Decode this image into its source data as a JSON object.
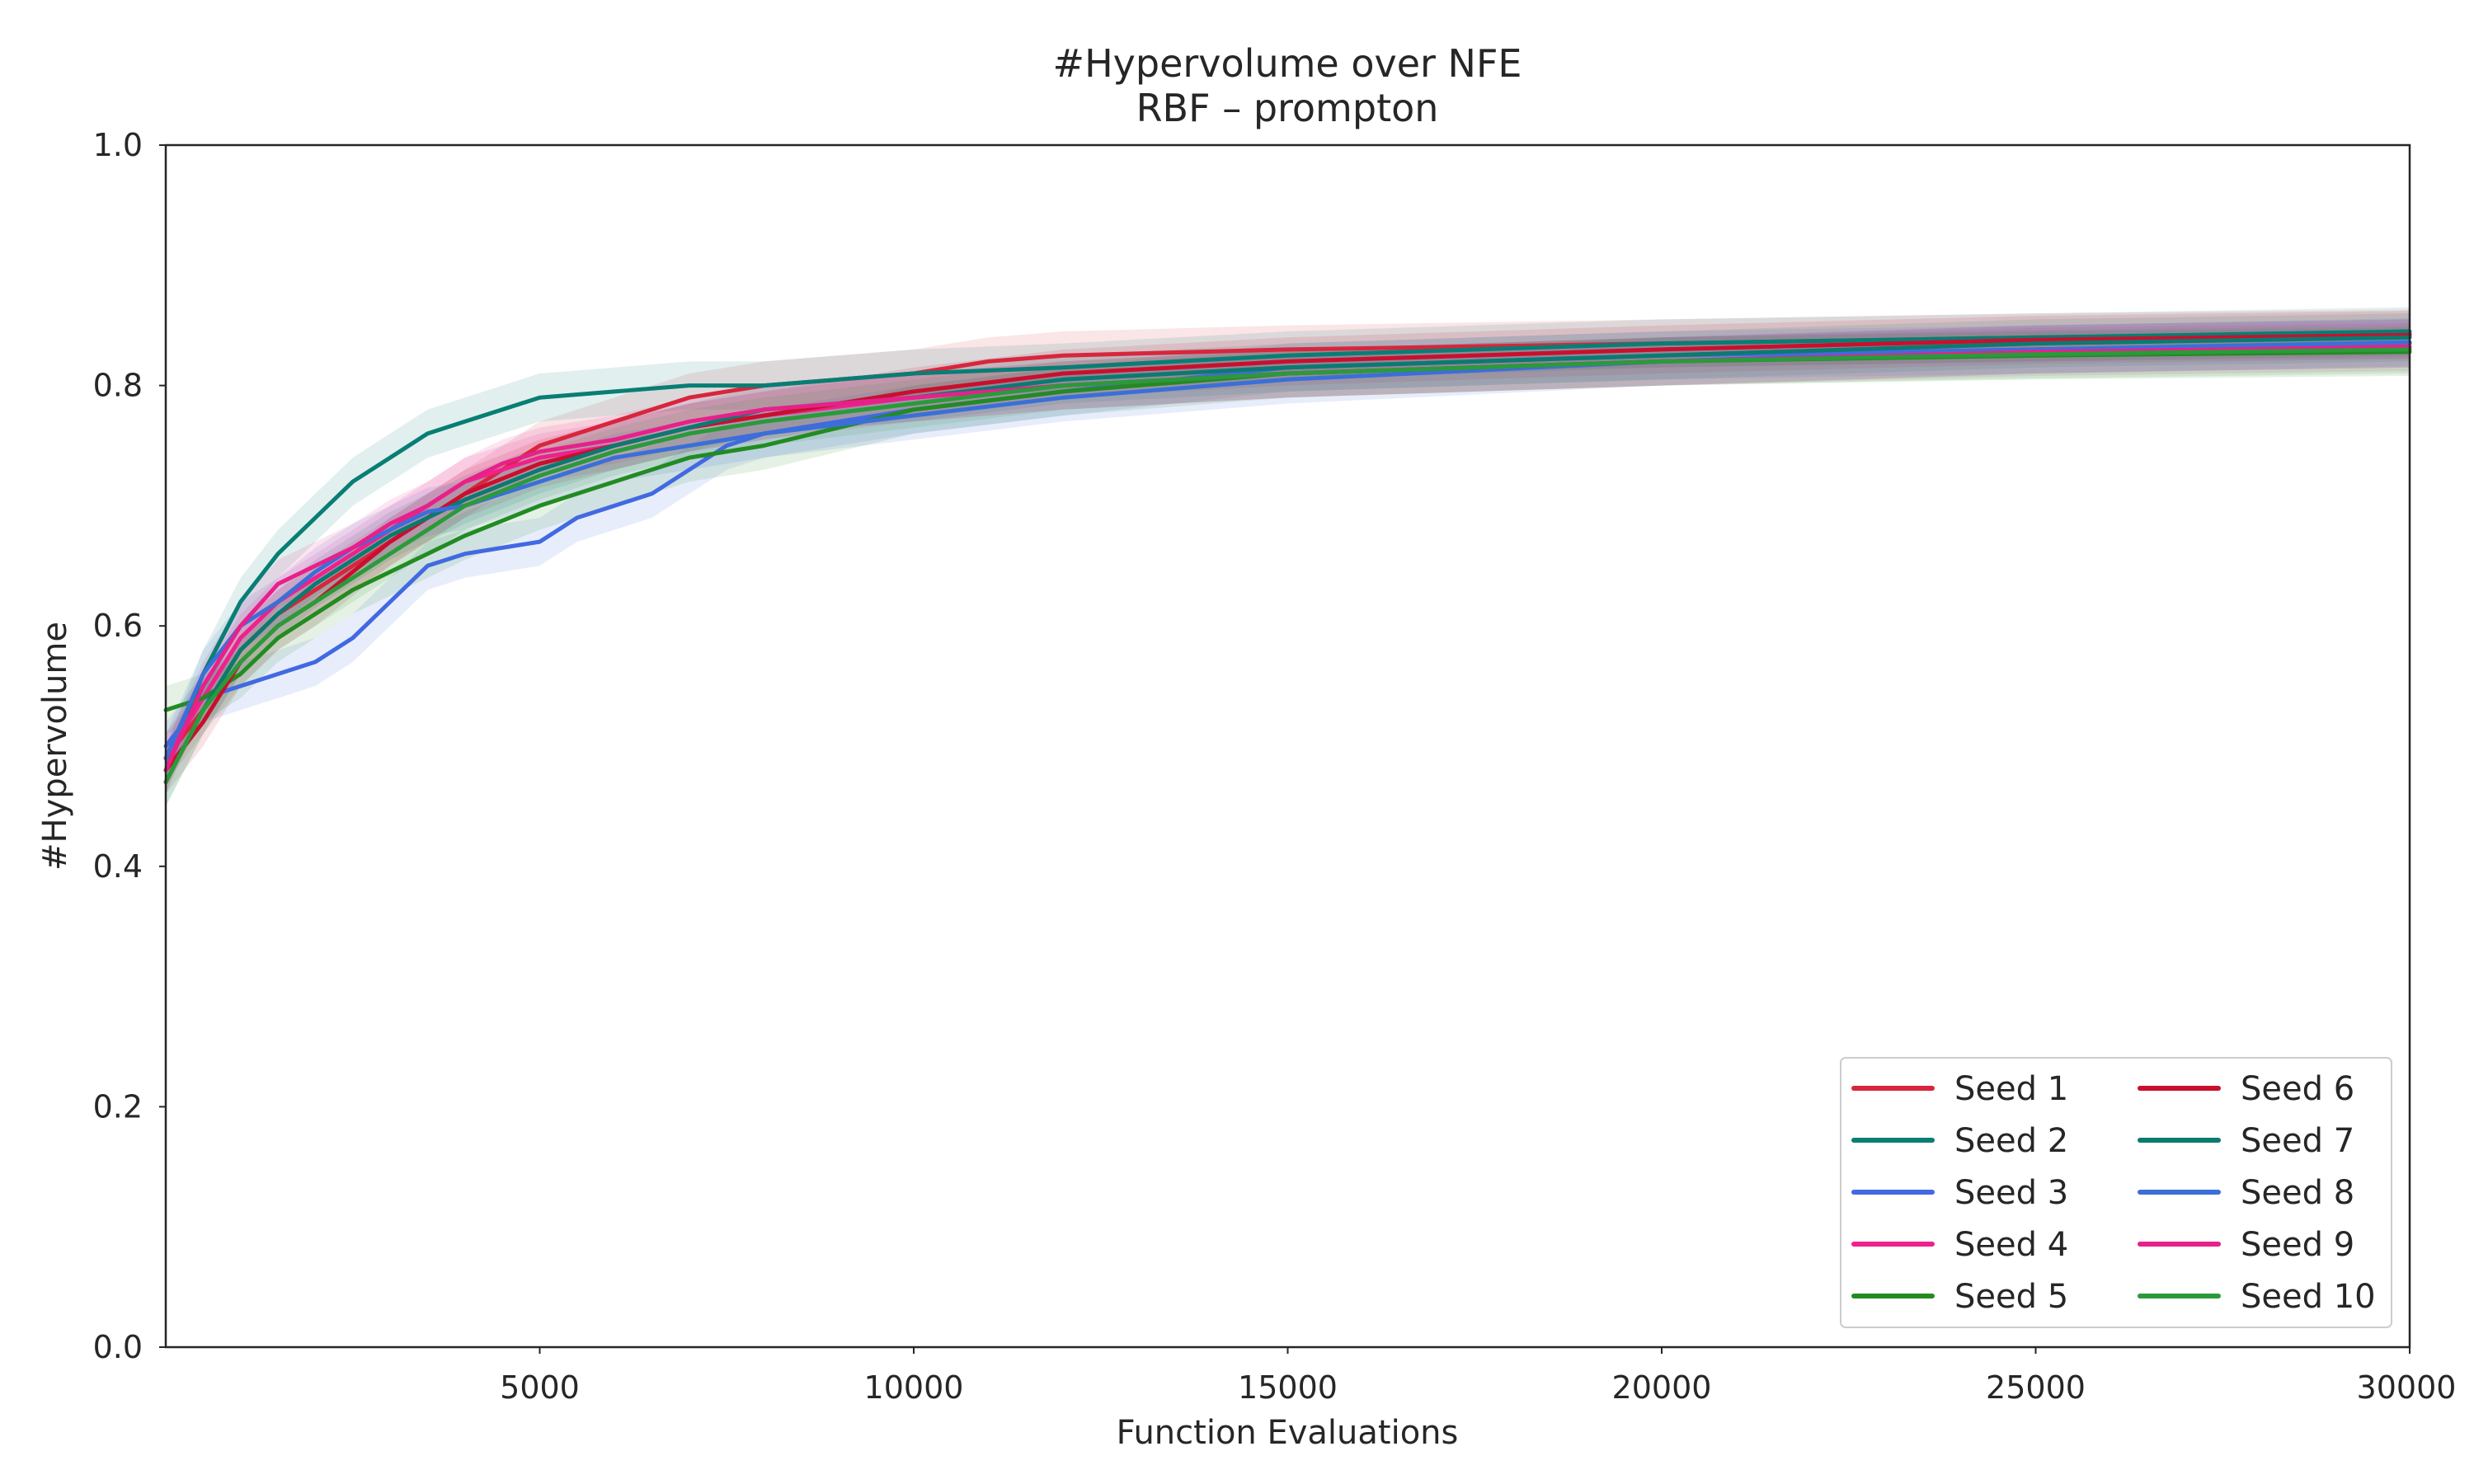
{
  "chart_data": {
    "type": "line",
    "title": "#Hypervolume over NFE",
    "subtitle": "RBF – prompton",
    "xlabel": "Function Evaluations",
    "ylabel": "#Hypervolume",
    "xlim": [
      0,
      30000
    ],
    "ylim": [
      0.0,
      1.0
    ],
    "xticks": [
      5000,
      10000,
      15000,
      20000,
      25000,
      30000
    ],
    "yticks": [
      0.0,
      0.2,
      0.4,
      0.6,
      0.8,
      1.0
    ],
    "xtick_labels": [
      "5000",
      "10000",
      "15000",
      "20000",
      "25000",
      "30000"
    ],
    "ytick_labels": [
      "0.0",
      "0.2",
      "0.4",
      "0.6",
      "0.8",
      "1.0"
    ],
    "grid": false,
    "legend": {
      "position": "lower-right",
      "columns": 2
    },
    "band_half_width": 0.02,
    "series": [
      {
        "name": "Seed 1",
        "color": "#d7263d",
        "x": [
          0,
          500,
          1000,
          1500,
          2000,
          3000,
          4000,
          5000,
          6000,
          7000,
          8000,
          10000,
          11000,
          12000,
          15000,
          20000,
          25000,
          30000
        ],
        "y": [
          0.49,
          0.53,
          0.58,
          0.61,
          0.63,
          0.67,
          0.71,
          0.75,
          0.77,
          0.79,
          0.8,
          0.81,
          0.82,
          0.825,
          0.83,
          0.835,
          0.84,
          0.843
        ]
      },
      {
        "name": "Seed 2",
        "color": "#087e74",
        "x": [
          0,
          500,
          1000,
          1500,
          2000,
          2500,
          3000,
          3500,
          4000,
          5000,
          6000,
          7000,
          8000,
          10000,
          12000,
          15000,
          20000,
          25000,
          30000
        ],
        "y": [
          0.48,
          0.56,
          0.62,
          0.66,
          0.69,
          0.72,
          0.74,
          0.76,
          0.77,
          0.79,
          0.795,
          0.8,
          0.8,
          0.81,
          0.815,
          0.825,
          0.835,
          0.84,
          0.845
        ]
      },
      {
        "name": "Seed 3",
        "color": "#4169e1",
        "x": [
          0,
          500,
          1000,
          1500,
          2000,
          2500,
          3000,
          3500,
          4000,
          4500,
          5000,
          5500,
          6000,
          6500,
          7000,
          7500,
          8000,
          9000,
          10000,
          12000,
          15000,
          20000,
          25000,
          30000
        ],
        "y": [
          0.5,
          0.54,
          0.55,
          0.56,
          0.57,
          0.59,
          0.62,
          0.65,
          0.66,
          0.665,
          0.67,
          0.69,
          0.7,
          0.71,
          0.73,
          0.75,
          0.76,
          0.77,
          0.78,
          0.795,
          0.815,
          0.825,
          0.83,
          0.835
        ]
      },
      {
        "name": "Seed 4",
        "color": "#f0208c",
        "x": [
          0,
          500,
          1000,
          1500,
          2000,
          2500,
          3000,
          3500,
          4000,
          5000,
          6000,
          7000,
          8000,
          10000,
          12000,
          15000,
          20000,
          25000,
          30000
        ],
        "y": [
          0.49,
          0.54,
          0.59,
          0.62,
          0.64,
          0.66,
          0.68,
          0.7,
          0.72,
          0.74,
          0.75,
          0.765,
          0.775,
          0.79,
          0.8,
          0.81,
          0.82,
          0.83,
          0.835
        ]
      },
      {
        "name": "Seed 5",
        "color": "#228b22",
        "x": [
          0,
          500,
          1000,
          1500,
          2000,
          2500,
          3000,
          3500,
          4000,
          5000,
          6000,
          7000,
          8000,
          9000,
          10000,
          12000,
          15000,
          20000,
          25000,
          30000
        ],
        "y": [
          0.53,
          0.54,
          0.56,
          0.59,
          0.61,
          0.63,
          0.645,
          0.66,
          0.675,
          0.7,
          0.72,
          0.74,
          0.75,
          0.765,
          0.78,
          0.795,
          0.81,
          0.82,
          0.825,
          0.828
        ]
      },
      {
        "name": "Seed 6",
        "color": "#c8102e",
        "x": [
          0,
          500,
          1000,
          1500,
          2000,
          2500,
          3000,
          3500,
          4000,
          5000,
          6000,
          7000,
          8000,
          9000,
          10000,
          12000,
          15000,
          20000,
          25000,
          30000
        ],
        "y": [
          0.48,
          0.52,
          0.57,
          0.6,
          0.62,
          0.645,
          0.67,
          0.69,
          0.71,
          0.735,
          0.75,
          0.765,
          0.775,
          0.785,
          0.795,
          0.81,
          0.82,
          0.83,
          0.838,
          0.842
        ]
      },
      {
        "name": "Seed 7",
        "color": "#0b7a70",
        "x": [
          0,
          500,
          1000,
          1500,
          2000,
          2500,
          3000,
          3500,
          4000,
          5000,
          6000,
          7000,
          8000,
          10000,
          12000,
          15000,
          20000,
          25000,
          30000
        ],
        "y": [
          0.47,
          0.53,
          0.58,
          0.61,
          0.635,
          0.655,
          0.675,
          0.69,
          0.705,
          0.73,
          0.75,
          0.765,
          0.78,
          0.79,
          0.805,
          0.815,
          0.825,
          0.835,
          0.84
        ]
      },
      {
        "name": "Seed 8",
        "color": "#3b6fd8",
        "x": [
          0,
          500,
          1000,
          1500,
          2000,
          2500,
          3000,
          3500,
          4000,
          5000,
          6000,
          7000,
          8000,
          10000,
          12000,
          15000,
          20000,
          25000,
          30000
        ],
        "y": [
          0.49,
          0.56,
          0.6,
          0.62,
          0.645,
          0.665,
          0.68,
          0.695,
          0.7,
          0.72,
          0.74,
          0.75,
          0.76,
          0.775,
          0.79,
          0.805,
          0.82,
          0.83,
          0.836
        ]
      },
      {
        "name": "Seed 9",
        "color": "#e8208a",
        "x": [
          0,
          500,
          1000,
          1500,
          2000,
          2500,
          3000,
          3500,
          4000,
          4500,
          5000,
          6000,
          7000,
          8000,
          10000,
          12000,
          15000,
          20000,
          25000,
          30000
        ],
        "y": [
          0.48,
          0.55,
          0.6,
          0.635,
          0.65,
          0.665,
          0.685,
          0.7,
          0.72,
          0.735,
          0.745,
          0.755,
          0.77,
          0.78,
          0.79,
          0.8,
          0.81,
          0.82,
          0.828,
          0.832
        ]
      },
      {
        "name": "Seed 10",
        "color": "#2a9a3a",
        "x": [
          0,
          500,
          1000,
          1500,
          2000,
          2500,
          3000,
          3500,
          4000,
          5000,
          6000,
          7000,
          8000,
          10000,
          12000,
          15000,
          20000,
          25000,
          30000
        ],
        "y": [
          0.47,
          0.53,
          0.57,
          0.6,
          0.62,
          0.64,
          0.66,
          0.68,
          0.7,
          0.725,
          0.745,
          0.76,
          0.77,
          0.785,
          0.8,
          0.81,
          0.82,
          0.826,
          0.83
        ]
      }
    ]
  }
}
